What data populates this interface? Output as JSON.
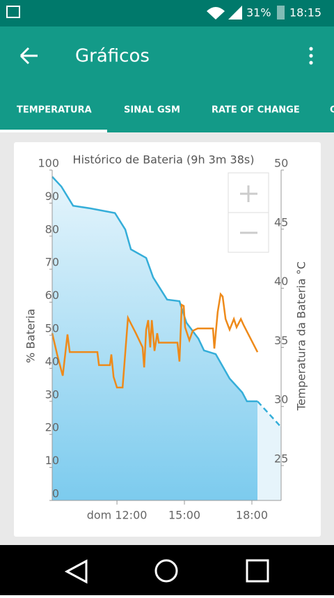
{
  "status_bar": {
    "battery": "31%",
    "time": "18:15"
  },
  "app_bar": {
    "title": "Gráficos"
  },
  "tabs": [
    "TEMPERATURA",
    "SINAL GSM",
    "RATE OF CHANGE",
    "C"
  ],
  "chart_data": {
    "type": "line",
    "title": "Histórico de Bateria (9h 3m 38s)",
    "ylabel": "% Bateria",
    "y2label": "Temperatura da Bateria °C",
    "xlim": [
      9.12,
      19.3
    ],
    "xticks": [
      {
        "value": 12,
        "label": "dom 12:00"
      },
      {
        "value": 15,
        "label": "15:00"
      },
      {
        "value": 18,
        "label": "18:00"
      }
    ],
    "ylim": [
      0,
      100
    ],
    "yticks": [
      0,
      10,
      20,
      30,
      40,
      50,
      60,
      70,
      80,
      90,
      100
    ],
    "y2lim": [
      22.05,
      50
    ],
    "y2ticks": [
      25,
      30,
      35,
      40,
      45,
      50
    ],
    "series": [
      {
        "color": "#35aed9",
        "fill": true,
        "x": [
          9.12,
          9.53,
          10.05,
          10.82,
          11.91,
          12.37,
          12.62,
          13.3,
          13.61,
          14.23,
          14.78,
          15.09,
          15.62,
          15.87,
          16.39,
          17.01,
          17.57,
          17.78,
          18.25
        ],
        "values": [
          98,
          95,
          89.2,
          88.4,
          87,
          82,
          76,
          73.4,
          67.5,
          60.8,
          60.3,
          53.8,
          49,
          45.4,
          44.3,
          36.9,
          32.7,
          30,
          30
        ]
      },
      {
        "color": "#35aed9",
        "fill": true,
        "dashed": true,
        "x": [
          18.25,
          19.3
        ],
        "values": [
          30,
          22.2
        ]
      },
      {
        "color": "#ee8a1a",
        "axis": "y2",
        "x": [
          9.12,
          9.34,
          9.59,
          9.8,
          9.9,
          11.13,
          11.2,
          11.69,
          11.75,
          11.85,
          12.0,
          12.25,
          12.49,
          12.84,
          13.14,
          13.21,
          13.3,
          13.39,
          13.48,
          13.55,
          13.67,
          13.79,
          13.86,
          14.69,
          14.78,
          14.88,
          14.97,
          15.03,
          15.22,
          15.37,
          15.59,
          16.27,
          16.33,
          16.48,
          16.61,
          16.7,
          16.83,
          17.01,
          17.2,
          17.32,
          17.51,
          17.63,
          18.25
        ],
        "values": [
          36.2,
          34.4,
          32.6,
          36.1,
          34.6,
          34.6,
          33.5,
          33.5,
          34.4,
          32.5,
          31.6,
          31.6,
          37.5,
          36.2,
          35,
          33.3,
          36.5,
          37.3,
          35,
          37.3,
          34.7,
          36.2,
          35.4,
          35.4,
          33.8,
          38.6,
          38.5,
          36.7,
          35.6,
          36.4,
          36.6,
          36.6,
          34.9,
          38,
          39.5,
          39.3,
          37.4,
          36.5,
          37.4,
          36.7,
          37.4,
          36.9,
          34.6
        ]
      }
    ]
  }
}
